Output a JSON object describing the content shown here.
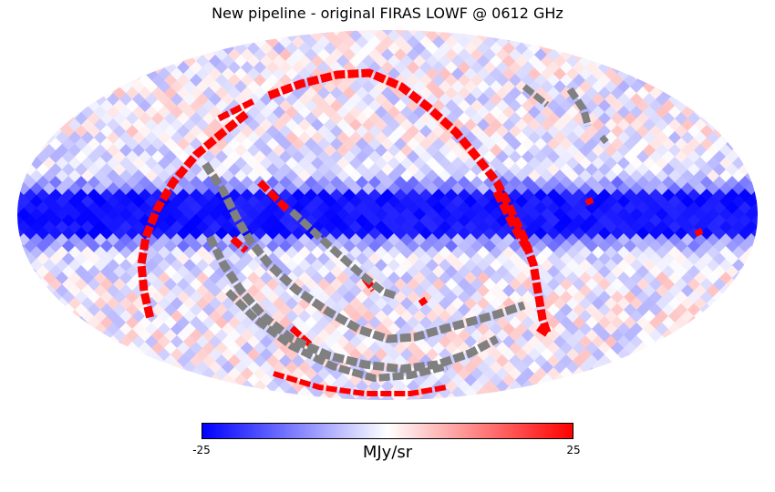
{
  "chart_data": {
    "type": "heatmap",
    "projection": "mollweide",
    "title": "New pipeline - original FIRAS LOWF @ 0612 GHz",
    "colormap": [
      "#0000ff",
      "#ffffff",
      "#ff0000"
    ],
    "masked_color": "#808080",
    "saturated_high_color": "#ff0000",
    "colorbar": {
      "min": -25,
      "max": 25,
      "min_label": "-25",
      "max_label": "25",
      "unit_label": "MJy/sr"
    }
  }
}
